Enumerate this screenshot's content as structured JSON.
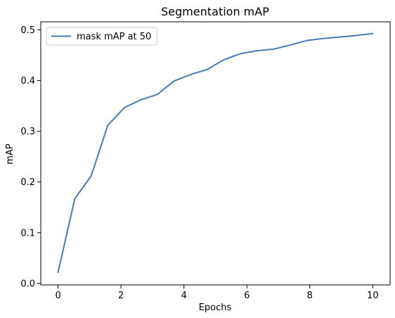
{
  "chart_data": {
    "type": "line",
    "title": "Segmentation mAP",
    "xlabel": "Epochs",
    "ylabel": "mAP",
    "xlim": [
      -0.55,
      10.55
    ],
    "ylim": [
      -0.003,
      0.516
    ],
    "xticks": [
      0,
      2,
      4,
      6,
      8,
      10
    ],
    "yticks": [
      0.0,
      0.1,
      0.2,
      0.3,
      0.4,
      0.5
    ],
    "xtick_labels": [
      "0",
      "2",
      "4",
      "6",
      "8",
      "10"
    ],
    "ytick_labels": [
      "0.0",
      "0.1",
      "0.2",
      "0.3",
      "0.4",
      "0.5"
    ],
    "grid": false,
    "legend_position": "upper-left",
    "series": [
      {
        "name": "mask mAP at 50",
        "color": "#4a7ab3",
        "x": [
          0,
          0.53,
          1.05,
          1.58,
          2.11,
          2.63,
          3.16,
          3.68,
          4.21,
          4.74,
          5.26,
          5.79,
          6.32,
          6.84,
          7.37,
          7.89,
          8.42,
          8.95,
          9.47,
          10
        ],
        "values": [
          0.022,
          0.167,
          0.212,
          0.312,
          0.347,
          0.362,
          0.373,
          0.399,
          0.412,
          0.422,
          0.441,
          0.453,
          0.459,
          0.462,
          0.47,
          0.479,
          0.483,
          0.486,
          0.489,
          0.493
        ]
      }
    ]
  }
}
